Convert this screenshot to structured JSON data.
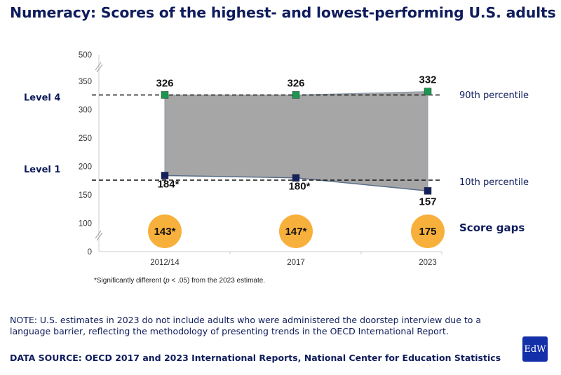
{
  "title": "Numeracy: Scores of the highest- and lowest-performing U.S. adults",
  "chart_data": {
    "type": "area",
    "title": "Numeracy: Scores of the highest- and lowest-performing U.S. adults",
    "categories": [
      "2012/14",
      "2017",
      "2023"
    ],
    "series": [
      {
        "name": "90th percentile",
        "values": [
          326,
          326,
          332
        ],
        "labels": [
          "326",
          "326",
          "332"
        ],
        "color": "#1a9850"
      },
      {
        "name": "10th percentile",
        "values": [
          184,
          180,
          157
        ],
        "labels": [
          "184*",
          "180*",
          "157"
        ],
        "color": "#14215e"
      }
    ],
    "score_gaps": {
      "name": "Score gaps",
      "labels": [
        "143*",
        "147*",
        "175"
      ],
      "values": [
        143,
        147,
        175
      ],
      "color": "#f7b03b"
    },
    "reference_lines": [
      {
        "label": "Level 4",
        "value": 326
      },
      {
        "label": "Level 1",
        "value": 176
      }
    ],
    "yticks": [
      "500",
      "350",
      "300",
      "250",
      "200",
      "150",
      "100",
      "0"
    ],
    "ylim": [
      0,
      500
    ],
    "axis_break": true,
    "fill_color": "#a6a6a6",
    "footnote_pre": "*Significantly different (",
    "footnote_p": "p",
    "footnote_post": " < .05) from the 2023 estimate."
  },
  "note": "NOTE: U.S. estimates in 2023 do not include adults who were administered the doorstep interview due to a language barrier, reflecting the methodology of presenting trends in the OECD International Report.",
  "source": "DATA SOURCE: OECD 2017 and 2023 International Reports, National Center for Education Statistics",
  "logo": "EdW"
}
